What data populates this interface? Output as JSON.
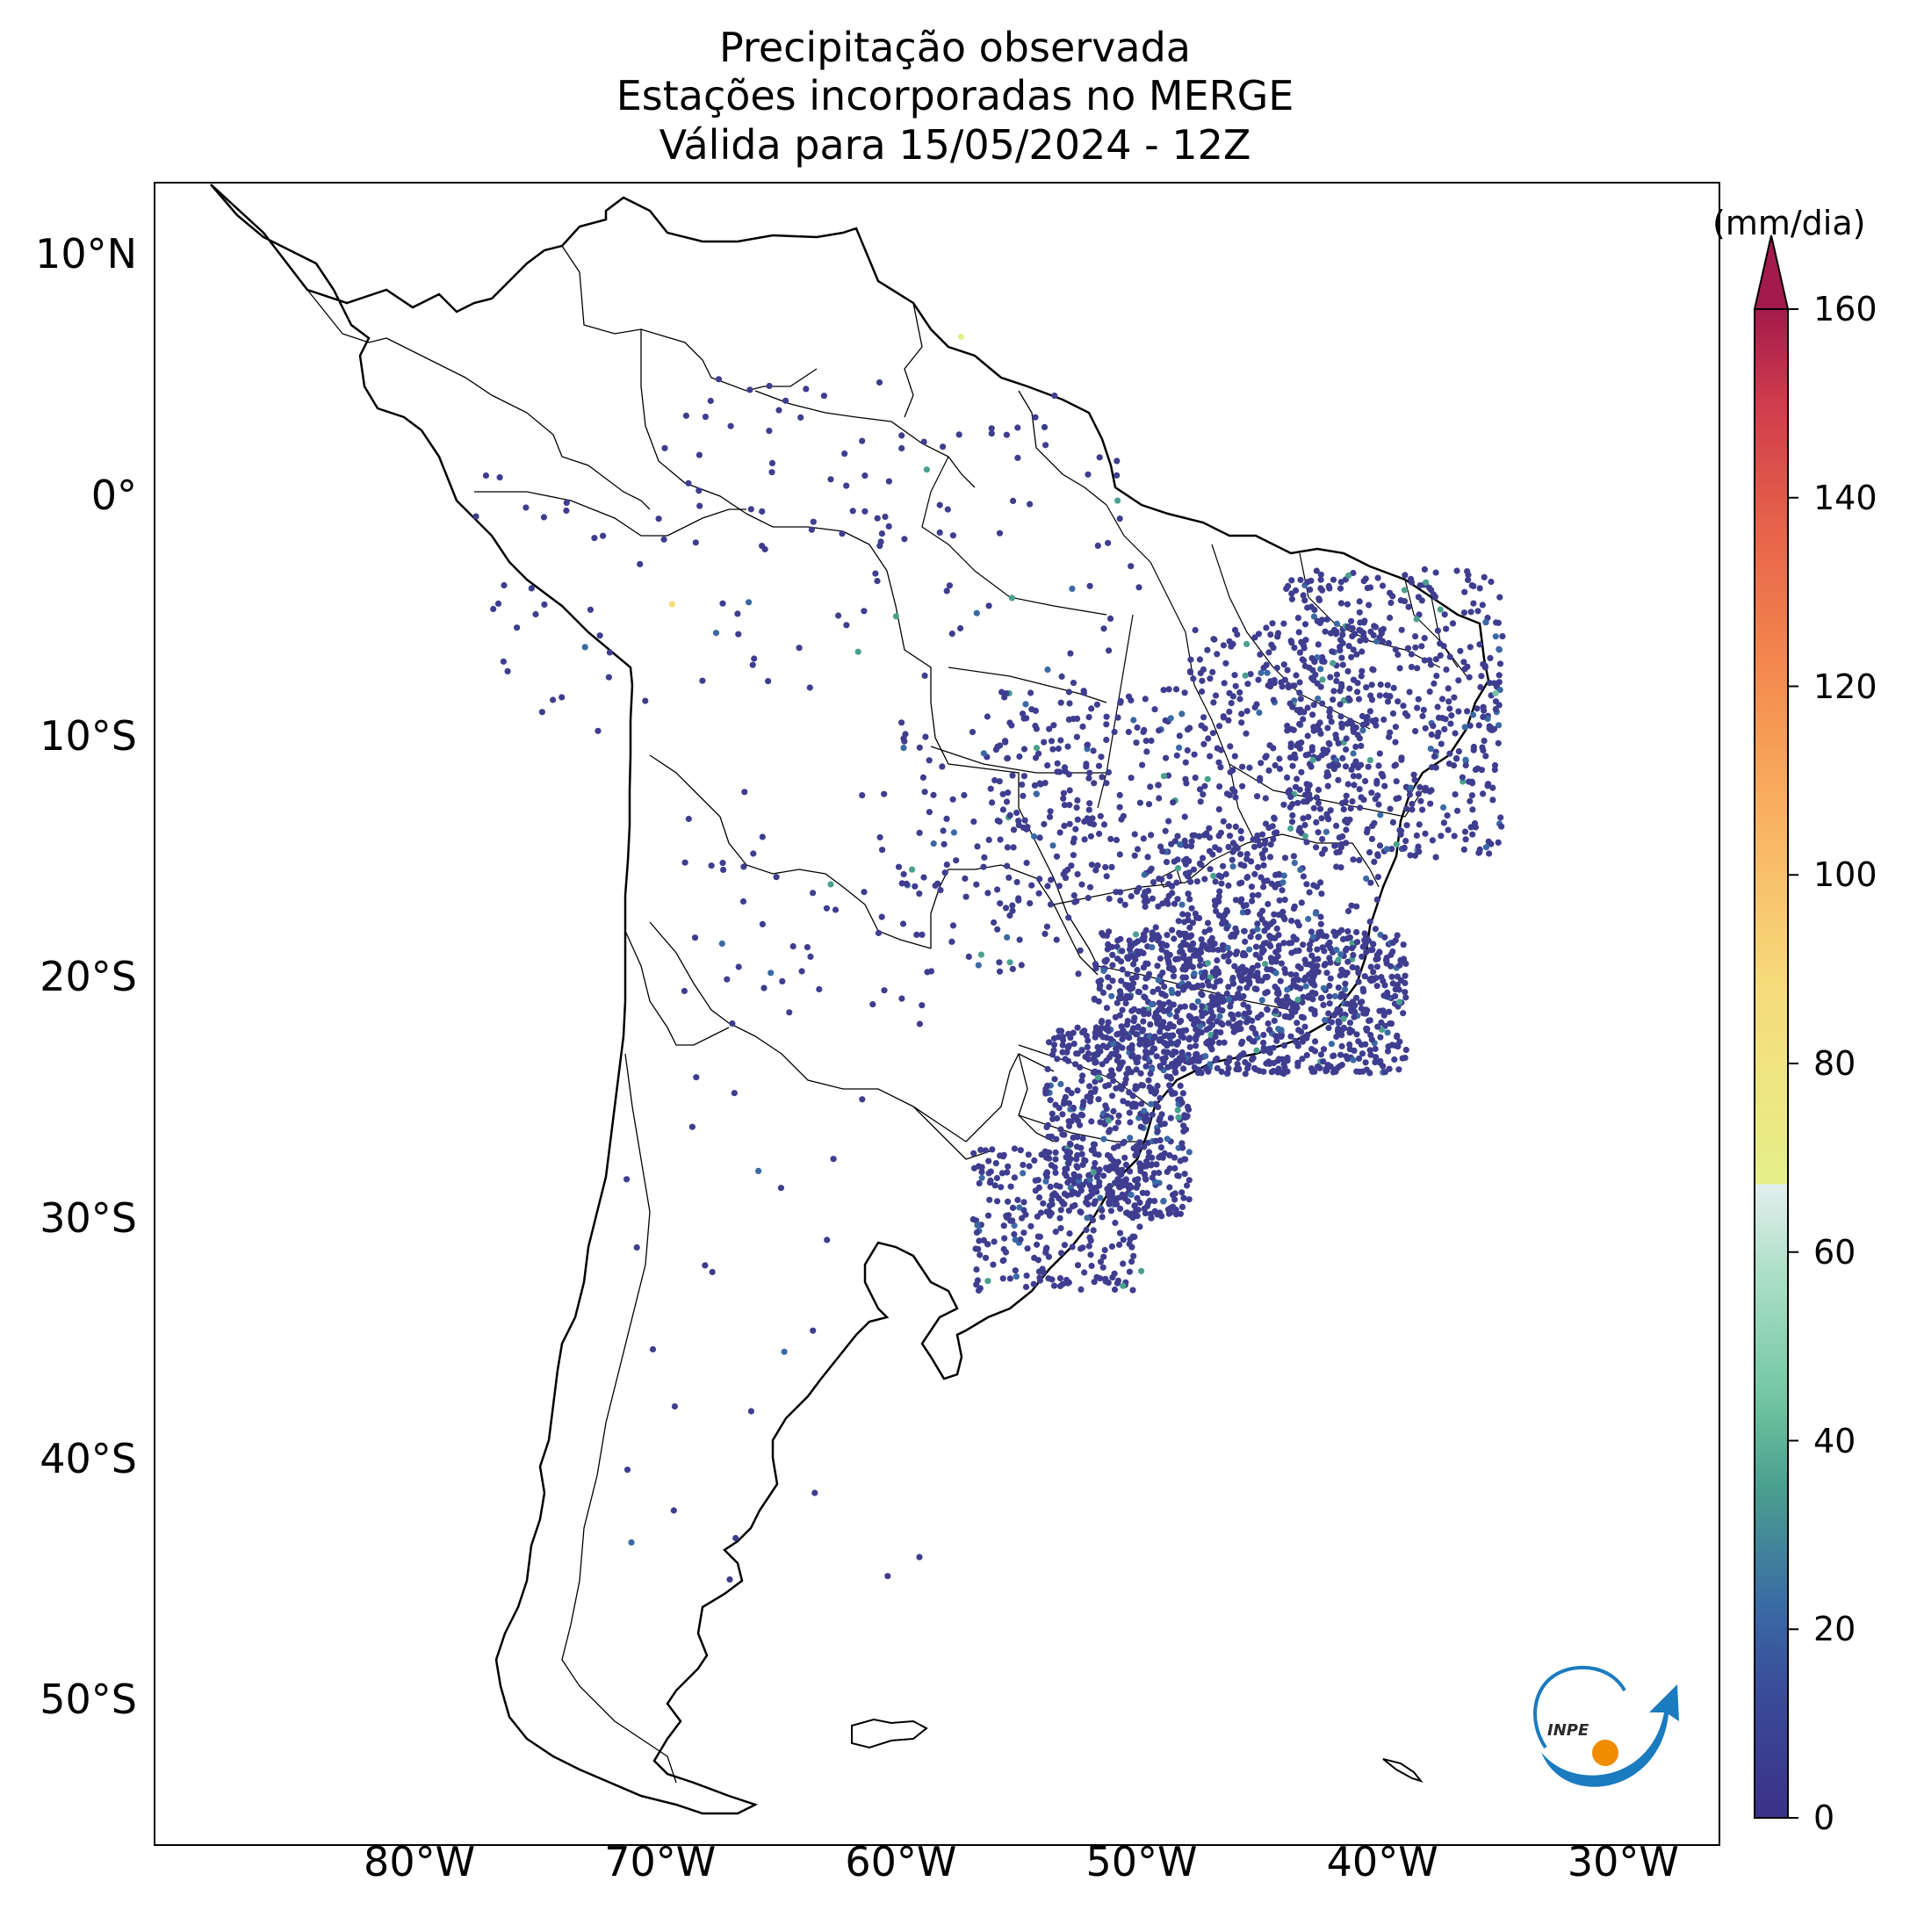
{
  "title": {
    "line1": "Precipitação observada",
    "line2": "Estações incorporadas no MERGE",
    "line3": "Válida para 15/05/2024 - 12Z"
  },
  "map": {
    "lat_labels": [
      "10°N",
      "0°",
      "10°S",
      "20°S",
      "30°S",
      "40°S",
      "50°S"
    ],
    "lon_labels": [
      "80°W",
      "70°W",
      "60°W",
      "50°W",
      "40°W",
      "30°W"
    ],
    "extent": {
      "lon_min": -91,
      "lon_max": -26,
      "lat_min": -56,
      "lat_max": 13
    },
    "station_color_dominant": "#3f3d8f",
    "coast_color": "#000000"
  },
  "colorbar": {
    "unit": "(mm/dia)",
    "ticks": [
      "0",
      "20",
      "40",
      "60",
      "80",
      "100",
      "120",
      "140",
      "160"
    ],
    "min": 0,
    "max": 160,
    "extend": "max",
    "colors": [
      "#3b3188",
      "#3a4d9b",
      "#3a6aa4",
      "#4aa08e",
      "#73c7a2",
      "#acdfc7",
      "#e3efee",
      "#e5ef8a",
      "#f6dc7a",
      "#f9b361",
      "#f48a4e",
      "#e6604a",
      "#ce3b4d",
      "#a31a4c"
    ]
  },
  "logo": {
    "text": "INPE"
  }
}
